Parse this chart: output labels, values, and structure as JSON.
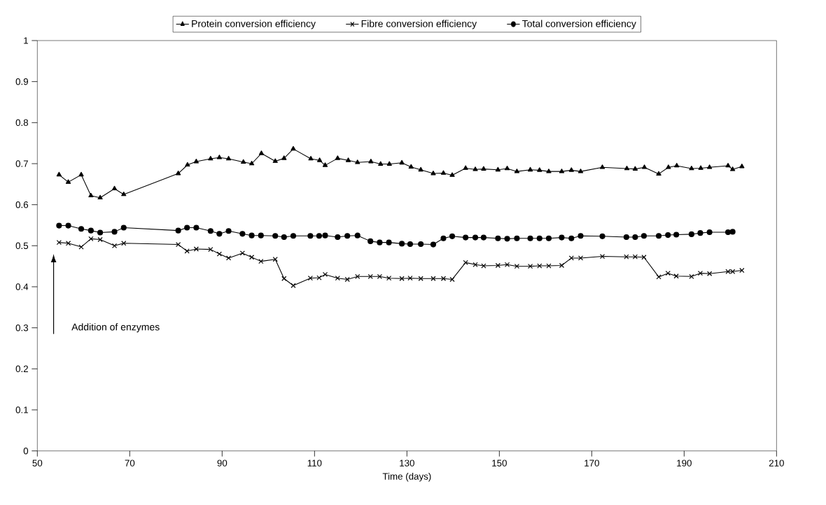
{
  "chart_data": {
    "type": "line",
    "xlabel": "Time (days)",
    "xlim": [
      50,
      210
    ],
    "xticks": [
      50,
      70,
      90,
      110,
      130,
      150,
      170,
      190,
      210
    ],
    "ylim": [
      0,
      1
    ],
    "yticks": [
      0,
      0.1,
      0.2,
      0.3,
      0.4,
      0.5,
      0.6,
      0.7,
      0.8,
      0.9,
      1
    ],
    "grid": false,
    "legend": "top",
    "line_style": "solid",
    "annotations": [
      "Addition of enzymes"
    ],
    "series": [
      {
        "name": "Protein conversion efficiency",
        "color": "#000000",
        "marker": "triangle",
        "x": [
          54.7,
          56.7,
          59.5,
          61.6,
          63.6,
          66.7,
          68.7,
          80.5,
          82.5,
          84.4,
          87.5,
          89.4,
          91.4,
          94.6,
          96.4,
          98.5,
          101.5,
          103.4,
          105.4,
          109.2,
          111.1,
          112.3,
          115.0,
          117.3,
          119.3,
          122.2,
          124.3,
          126.2,
          128.9,
          130.9,
          133.0,
          135.7,
          137.9,
          139.8,
          142.7,
          144.8,
          146.6,
          149.7,
          151.7,
          153.8,
          156.7,
          158.7,
          160.7,
          163.5,
          165.6,
          167.6,
          172.3,
          177.6,
          179.4,
          181.4,
          184.5,
          186.6,
          188.4,
          191.6,
          193.6,
          195.5,
          199.5,
          200.5,
          202.5
        ],
        "values": [
          0.673,
          0.655,
          0.673,
          0.622,
          0.617,
          0.639,
          0.625,
          0.676,
          0.697,
          0.705,
          0.712,
          0.715,
          0.712,
          0.704,
          0.7,
          0.725,
          0.706,
          0.713,
          0.736,
          0.712,
          0.708,
          0.696,
          0.713,
          0.708,
          0.703,
          0.705,
          0.699,
          0.699,
          0.702,
          0.692,
          0.685,
          0.676,
          0.677,
          0.672,
          0.689,
          0.686,
          0.687,
          0.685,
          0.688,
          0.681,
          0.685,
          0.684,
          0.681,
          0.681,
          0.684,
          0.681,
          0.691,
          0.688,
          0.687,
          0.691,
          0.675,
          0.691,
          0.695,
          0.688,
          0.689,
          0.691,
          0.695,
          0.686,
          0.693
        ]
      },
      {
        "name": "Fibre conversion efficiency",
        "color": "#000000",
        "marker": "cross",
        "x": [
          54.7,
          56.7,
          59.5,
          61.6,
          63.6,
          66.7,
          68.7,
          80.5,
          82.4,
          84.4,
          87.5,
          89.4,
          91.4,
          94.4,
          96.4,
          98.4,
          101.5,
          103.4,
          105.4,
          109.1,
          111.0,
          112.3,
          115.0,
          117.1,
          119.3,
          122.1,
          124.1,
          126.1,
          128.9,
          130.7,
          133.0,
          135.7,
          137.9,
          139.8,
          142.7,
          144.8,
          146.6,
          149.7,
          151.7,
          153.8,
          156.7,
          158.7,
          160.7,
          163.5,
          165.6,
          167.6,
          172.3,
          177.5,
          179.4,
          181.3,
          184.5,
          186.5,
          188.3,
          191.6,
          193.5,
          195.5,
          199.5,
          200.5,
          202.5
        ],
        "values": [
          0.508,
          0.506,
          0.497,
          0.517,
          0.515,
          0.5,
          0.506,
          0.503,
          0.487,
          0.492,
          0.491,
          0.48,
          0.47,
          0.482,
          0.472,
          0.462,
          0.467,
          0.42,
          0.403,
          0.421,
          0.422,
          0.43,
          0.421,
          0.418,
          0.425,
          0.425,
          0.425,
          0.421,
          0.42,
          0.421,
          0.42,
          0.42,
          0.42,
          0.418,
          0.459,
          0.454,
          0.451,
          0.452,
          0.454,
          0.45,
          0.45,
          0.451,
          0.451,
          0.452,
          0.47,
          0.47,
          0.474,
          0.473,
          0.473,
          0.472,
          0.424,
          0.433,
          0.426,
          0.425,
          0.433,
          0.432,
          0.437,
          0.437,
          0.44
        ]
      },
      {
        "name": "Total conversion efficiency",
        "color": "#000000",
        "marker": "circle",
        "x": [
          54.7,
          56.7,
          59.5,
          61.6,
          63.6,
          66.7,
          68.7,
          80.5,
          82.4,
          84.4,
          87.5,
          89.4,
          91.4,
          94.4,
          96.4,
          98.4,
          101.5,
          103.4,
          105.4,
          109.1,
          111.0,
          112.3,
          115.0,
          117.1,
          119.3,
          122.1,
          124.1,
          126.1,
          128.9,
          130.7,
          133.0,
          135.7,
          137.9,
          139.8,
          142.7,
          144.8,
          146.6,
          149.7,
          151.7,
          153.8,
          156.7,
          158.7,
          160.7,
          163.5,
          165.6,
          167.6,
          172.3,
          177.5,
          179.4,
          181.3,
          184.5,
          186.5,
          188.3,
          191.6,
          193.5,
          195.5,
          199.5,
          200.5
        ],
        "values": [
          0.549,
          0.549,
          0.541,
          0.537,
          0.532,
          0.534,
          0.544,
          0.537,
          0.544,
          0.544,
          0.536,
          0.529,
          0.536,
          0.529,
          0.525,
          0.525,
          0.524,
          0.521,
          0.524,
          0.524,
          0.524,
          0.525,
          0.521,
          0.524,
          0.525,
          0.511,
          0.508,
          0.508,
          0.505,
          0.504,
          0.504,
          0.503,
          0.518,
          0.523,
          0.52,
          0.52,
          0.52,
          0.518,
          0.517,
          0.518,
          0.518,
          0.518,
          0.518,
          0.52,
          0.518,
          0.524,
          0.523,
          0.521,
          0.521,
          0.524,
          0.524,
          0.526,
          0.527,
          0.528,
          0.531,
          0.533,
          0.533,
          0.534
        ]
      }
    ]
  }
}
